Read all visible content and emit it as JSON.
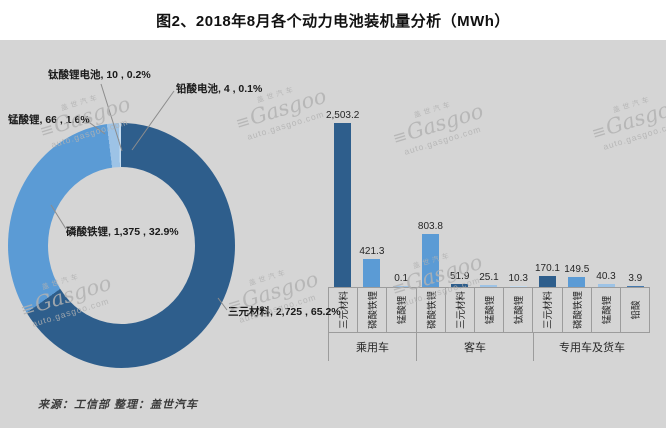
{
  "title": "图2、2018年8月各个动力电池装机量分析（MWh）",
  "source": "来源：工信部 整理：盖世汽车",
  "watermark": {
    "cn": "盖世汽车",
    "logo": "≡",
    "brand": "Gasgoo",
    "url": "auto.gasgoo.com"
  },
  "colors": {
    "background": "#d5d5d5",
    "title_text": "#111111",
    "axis_border": "#9c9c9c",
    "materials": {
      "三元材料": "#2e5e8c",
      "磷酸铁锂": "#5b9bd5",
      "锰酸锂": "#9dc3e6",
      "钛酸锂": "#c5dcf0",
      "钛酸锂电池": "#c5dcf0",
      "铅酸": "#4579ae",
      "铅酸电池": "#2e5e8c"
    }
  },
  "chart_data": [
    {
      "type": "pie",
      "subtype": "donut",
      "unit": "MWh",
      "legend_position": "none",
      "slices": [
        {
          "material": "三元材料",
          "value": 2725,
          "pct": "65.2%",
          "label": "三元材料, 2,725 , 65.2%"
        },
        {
          "material": "磷酸铁锂",
          "value": 1375,
          "pct": "32.9%",
          "label": "磷酸铁锂, 1,375 , 32.9%"
        },
        {
          "material": "锰酸锂",
          "value": 66,
          "pct": "1.6%",
          "label": "锰酸锂, 66 , 1.6%"
        },
        {
          "material": "钛酸锂电池",
          "value": 10,
          "pct": "0.2%",
          "label": "钛酸锂电池, 10 , 0.2%"
        },
        {
          "material": "铅酸电池",
          "value": 4,
          "pct": "0.1%",
          "label": "铅酸电池, 4 , 0.1%"
        }
      ]
    },
    {
      "type": "bar",
      "unit": "MWh",
      "ylim": [
        0,
        2600
      ],
      "grid": false,
      "groups": [
        {
          "label": "乘用车",
          "bars": [
            {
              "material": "三元材料",
              "value": 2503.2,
              "display": "2,503.2"
            },
            {
              "material": "磷酸铁锂",
              "value": 421.3,
              "display": "421.3"
            },
            {
              "material": "锰酸锂",
              "value": 0.1,
              "display": "0.1"
            }
          ]
        },
        {
          "label": "客车",
          "bars": [
            {
              "material": "磷酸铁锂",
              "value": 803.8,
              "display": "803.8"
            },
            {
              "material": "三元材料",
              "value": 51.9,
              "display": "51.9"
            },
            {
              "material": "锰酸锂",
              "value": 25.1,
              "display": "25.1"
            },
            {
              "material": "钛酸锂",
              "value": 10.3,
              "display": "10.3"
            }
          ]
        },
        {
          "label": "专用车及货车",
          "bars": [
            {
              "material": "三元材料",
              "value": 170.1,
              "display": "170.1"
            },
            {
              "material": "磷酸铁锂",
              "value": 149.5,
              "display": "149.5"
            },
            {
              "material": "锰酸锂",
              "value": 40.3,
              "display": "40.3"
            },
            {
              "material": "铅酸",
              "value": 3.9,
              "display": "3.9"
            }
          ]
        }
      ]
    }
  ]
}
